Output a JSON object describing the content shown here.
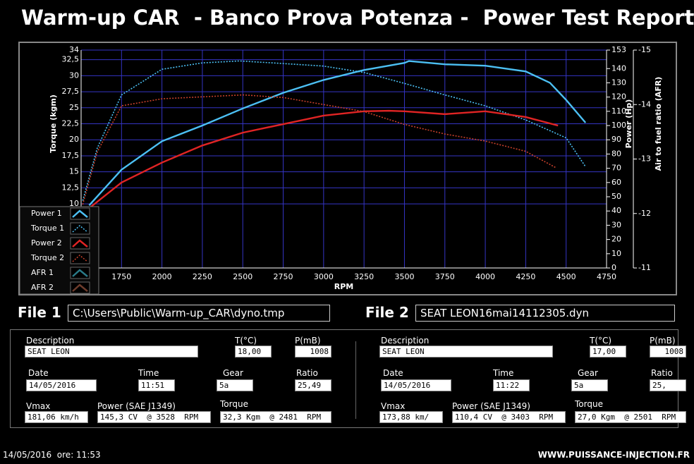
{
  "header": {
    "title": "Warm-up CAR  - Banco Prova Potenza -  Power Test Report"
  },
  "chart_data": {
    "type": "line",
    "x_label": "RPM",
    "y_label": "Torque (kgm)",
    "y2_label": "Power (Hp)",
    "y3_label": "Air to fuel ratio (AFR)",
    "xlim": [
      1500,
      4750
    ],
    "xticks": [
      1750,
      2000,
      2250,
      2500,
      2750,
      3000,
      3250,
      3500,
      3750,
      4000,
      4250,
      4500,
      4750
    ],
    "ylim": [
      0,
      34
    ],
    "yticks": [
      {
        "value": 10,
        "label": "10"
      },
      {
        "value": 12.5,
        "label": "12,5"
      },
      15,
      {
        "value": 17.5,
        "label": "17,5"
      },
      20,
      {
        "value": 22.5,
        "label": "22,5"
      },
      25,
      {
        "value": 27.5,
        "label": "27,5"
      },
      30,
      {
        "value": 32.5,
        "label": "32,5"
      },
      34
    ],
    "y2lim": [
      0,
      153
    ],
    "y2ticks": [
      0,
      10,
      20,
      30,
      40,
      50,
      60,
      70,
      80,
      90,
      100,
      110,
      120,
      130,
      140,
      153
    ],
    "y3lim": [
      -11,
      -15
    ],
    "y3ticks": [
      -11,
      -12,
      -13,
      -14,
      -15
    ],
    "grid": true,
    "series": [
      {
        "name": "Power 1",
        "color": "#4cc0f4",
        "style": "solid",
        "axis": "y2",
        "x": [
          1550,
          1750,
          2000,
          2250,
          2500,
          2750,
          3000,
          3250,
          3500,
          3528,
          3750,
          4000,
          4250,
          4400,
          4500,
          4620
        ],
        "values": [
          44,
          69,
          89,
          100,
          112,
          123,
          132,
          139,
          144,
          145.3,
          143,
          142,
          138,
          130,
          118,
          102
        ]
      },
      {
        "name": "Torque 1",
        "color": "#4cc0f4",
        "style": "dotted",
        "axis": "y",
        "x": [
          1510,
          1600,
          1750,
          2000,
          2250,
          2481,
          2750,
          3000,
          3250,
          3500,
          3750,
          4000,
          4250,
          4500,
          4620
        ],
        "values": [
          10.5,
          18.7,
          27,
          31,
          32,
          32.3,
          31.9,
          31.5,
          30.5,
          28.8,
          27,
          25.3,
          23.1,
          20.3,
          15.8
        ]
      },
      {
        "name": "Power 2",
        "color": "#e02424",
        "style": "solid",
        "axis": "y2",
        "x": [
          1550,
          1750,
          2000,
          2250,
          2500,
          2750,
          3000,
          3250,
          3403,
          3500,
          3750,
          4000,
          4250,
          4450
        ],
        "values": [
          42,
          60,
          74,
          86,
          95,
          101,
          107,
          110,
          110.4,
          110,
          108,
          110,
          106,
          100
        ]
      },
      {
        "name": "Torque 2",
        "color": "#c8402a",
        "style": "dotted",
        "axis": "y",
        "x": [
          1510,
          1600,
          1750,
          2000,
          2250,
          2501,
          2750,
          3000,
          3250,
          3500,
          3750,
          4000,
          4250,
          4440
        ],
        "values": [
          9.9,
          18.1,
          25.3,
          26.4,
          26.7,
          27,
          26.6,
          25.5,
          24.4,
          22.4,
          20.9,
          19.8,
          18.2,
          15.6
        ]
      },
      {
        "name": "AFR 1",
        "color": "#2a7a88",
        "style": "solid",
        "axis": "y3",
        "x": [],
        "values": []
      },
      {
        "name": "AFR 2",
        "color": "#6e3c2c",
        "style": "solid",
        "axis": "y3",
        "x": [],
        "values": []
      }
    ]
  },
  "files": [
    {
      "label": "File 1",
      "path": "C:\\Users\\Public\\Warm-up_CAR\\dyno.tmp"
    },
    {
      "label": "File 2",
      "path": "SEAT LEON16mai14112305.dyn"
    }
  ],
  "reports": [
    {
      "fields": [
        {
          "label": "Description",
          "value": "SEAT LEON"
        },
        {
          "label": "T(°C)",
          "value": "18,00"
        },
        {
          "label": "P(mB)",
          "value": "1008"
        },
        {
          "label": "Date",
          "value": "14/05/2016"
        },
        {
          "label": "Time",
          "value": "11:51"
        },
        {
          "label": "Gear",
          "value": "5a"
        },
        {
          "label": "Ratio",
          "value": "25,49"
        },
        {
          "label": "Vmax",
          "value": "181,06 km/h"
        },
        {
          "label": "Power (SAE J1349)",
          "value": "145,3 CV  @ 3528  RPM"
        },
        {
          "label": "Torque",
          "value": "32,3 Kgm  @ 2481  RPM"
        }
      ]
    },
    {
      "fields": [
        {
          "label": "Description",
          "value": "SEAT LEON"
        },
        {
          "label": "T(°C)",
          "value": "17,00"
        },
        {
          "label": "P(mB)",
          "value": "1008"
        },
        {
          "label": "Date",
          "value": "14/05/2016"
        },
        {
          "label": "Time",
          "value": "11:22"
        },
        {
          "label": "Gear",
          "value": "5a"
        },
        {
          "label": "Ratio",
          "value": "25,"
        },
        {
          "label": "Vmax",
          "value": "173,88 km/"
        },
        {
          "label": "Power (SAE J1349)",
          "value": "110,4 CV  @ 3403  RPM"
        },
        {
          "label": "Torque",
          "value": "27,0 Kgm  @ 2501  RPM"
        }
      ]
    }
  ],
  "footer": {
    "datetime": "14/05/2016  ore: 11:53",
    "website": "WWW.PUISSANCE-INJECTION.FR"
  }
}
